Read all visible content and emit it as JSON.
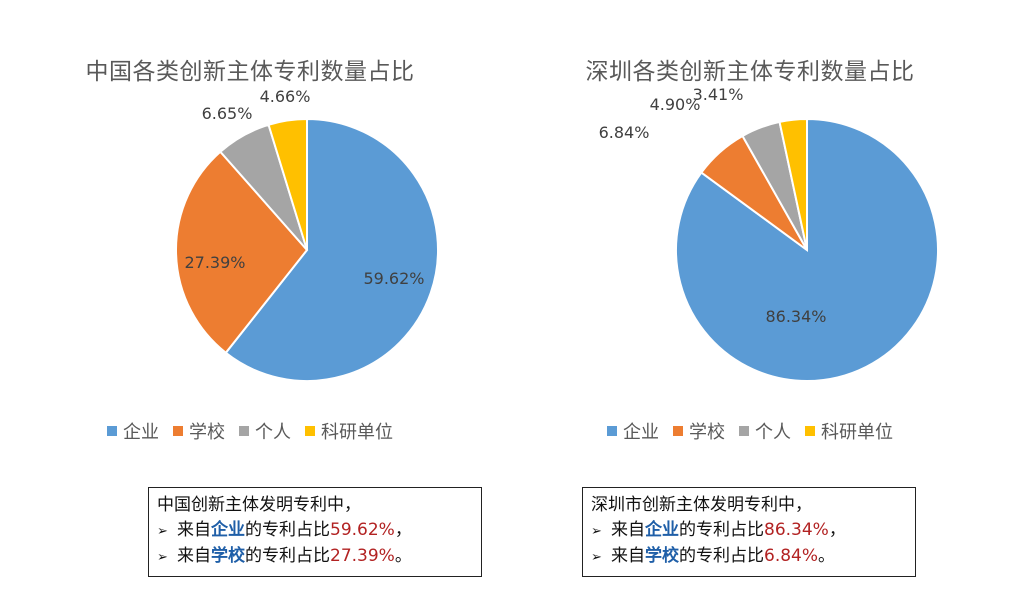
{
  "colors": {
    "enterprise": "#5B9BD5",
    "school": "#ED7D31",
    "individual": "#A5A5A5",
    "institute": "#FFC000",
    "label": "#404040",
    "emphasis": "#1F5FA8",
    "percent": "#B22222"
  },
  "chart_data": [
    {
      "type": "pie",
      "title": "中国各类创新主体专利数量占比",
      "categories": [
        "企业",
        "学校",
        "个人",
        "科研单位"
      ],
      "values": [
        59.62,
        27.39,
        6.65,
        4.66
      ],
      "labels": [
        "59.62%",
        "27.39%",
        "6.65%",
        "4.66%"
      ],
      "legend_position": "bottom"
    },
    {
      "type": "pie",
      "title": "深圳各类创新主体专利数量占比",
      "categories": [
        "企业",
        "学校",
        "个人",
        "科研单位"
      ],
      "values": [
        86.34,
        6.84,
        4.9,
        3.41
      ],
      "labels": [
        "86.34%",
        "6.84%",
        "4.90%",
        "3.41%"
      ],
      "legend_position": "bottom"
    }
  ],
  "notes": {
    "left": {
      "heading": "中国创新主体发明专利中，",
      "line1": {
        "prefix": "来自",
        "em": "企业",
        "mid": "的专利占比",
        "pct": "59.62%",
        "suffix": "，"
      },
      "line2": {
        "prefix": "来自",
        "em": "学校",
        "mid": "的专利占比",
        "pct": "27.39%",
        "suffix": "。"
      }
    },
    "right": {
      "heading": "深圳市创新主体发明专利中，",
      "line1": {
        "prefix": "来自",
        "em": "企业",
        "mid": "的专利占比",
        "pct": "86.34%",
        "suffix": "，"
      },
      "line2": {
        "prefix": "来自",
        "em": "学校",
        "mid": "的专利占比",
        "pct": "6.84%",
        "suffix": "。"
      }
    },
    "bullet": "➢"
  }
}
